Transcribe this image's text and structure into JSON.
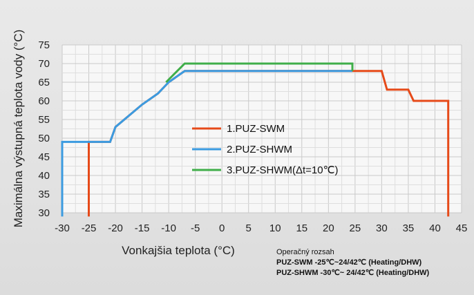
{
  "chart_data": {
    "type": "line",
    "xlabel": "Vonkajšia teplota (°C)",
    "ylabel": "Maximálna výstupná teplota vody (°C)",
    "xlim": [
      -30,
      45
    ],
    "ylim": [
      30,
      75
    ],
    "x_ticks": [
      -30,
      -25,
      -20,
      -15,
      -10,
      -5,
      0,
      5,
      10,
      15,
      20,
      25,
      30,
      35,
      40,
      45
    ],
    "y_ticks": [
      30,
      35,
      40,
      45,
      50,
      55,
      60,
      65,
      70,
      75
    ],
    "grid": true,
    "legend_position": "center",
    "series": [
      {
        "name": "1.PUZ-SWM",
        "color": "#e64a19",
        "points": [
          [
            -25,
            28
          ],
          [
            -25,
            49
          ],
          [
            -21,
            49
          ],
          [
            -20,
            53
          ],
          [
            -15,
            59
          ],
          [
            -12,
            62
          ],
          [
            -10,
            65
          ],
          [
            -7,
            68
          ],
          [
            30,
            68
          ],
          [
            31,
            63
          ],
          [
            35,
            63
          ],
          [
            36,
            60
          ],
          [
            42.5,
            60
          ],
          [
            42.5,
            28
          ]
        ]
      },
      {
        "name": "2.PUZ-SHWM",
        "color": "#3b9be0",
        "points": [
          [
            -30,
            28
          ],
          [
            -30,
            49
          ],
          [
            -25,
            49
          ],
          [
            -21,
            49
          ],
          [
            -20,
            53
          ],
          [
            -15,
            59
          ],
          [
            -12,
            62
          ],
          [
            -10,
            65
          ],
          [
            -7,
            68
          ],
          [
            24.5,
            68
          ]
        ]
      },
      {
        "name": "3.PUZ-SHWM(Δt=10℃)",
        "color": "#3fae49",
        "points": [
          [
            -10.5,
            65
          ],
          [
            -7,
            70
          ],
          [
            24.5,
            70
          ],
          [
            24.5,
            68
          ]
        ]
      }
    ]
  },
  "note": {
    "title": "Operačný rozsah",
    "line1": "PUZ-SWM  -25℃~24/42℃ (Heating/DHW)",
    "line2": "PUZ-SHWM -30℃~ 24/42℃ (Heating/DHW)"
  }
}
